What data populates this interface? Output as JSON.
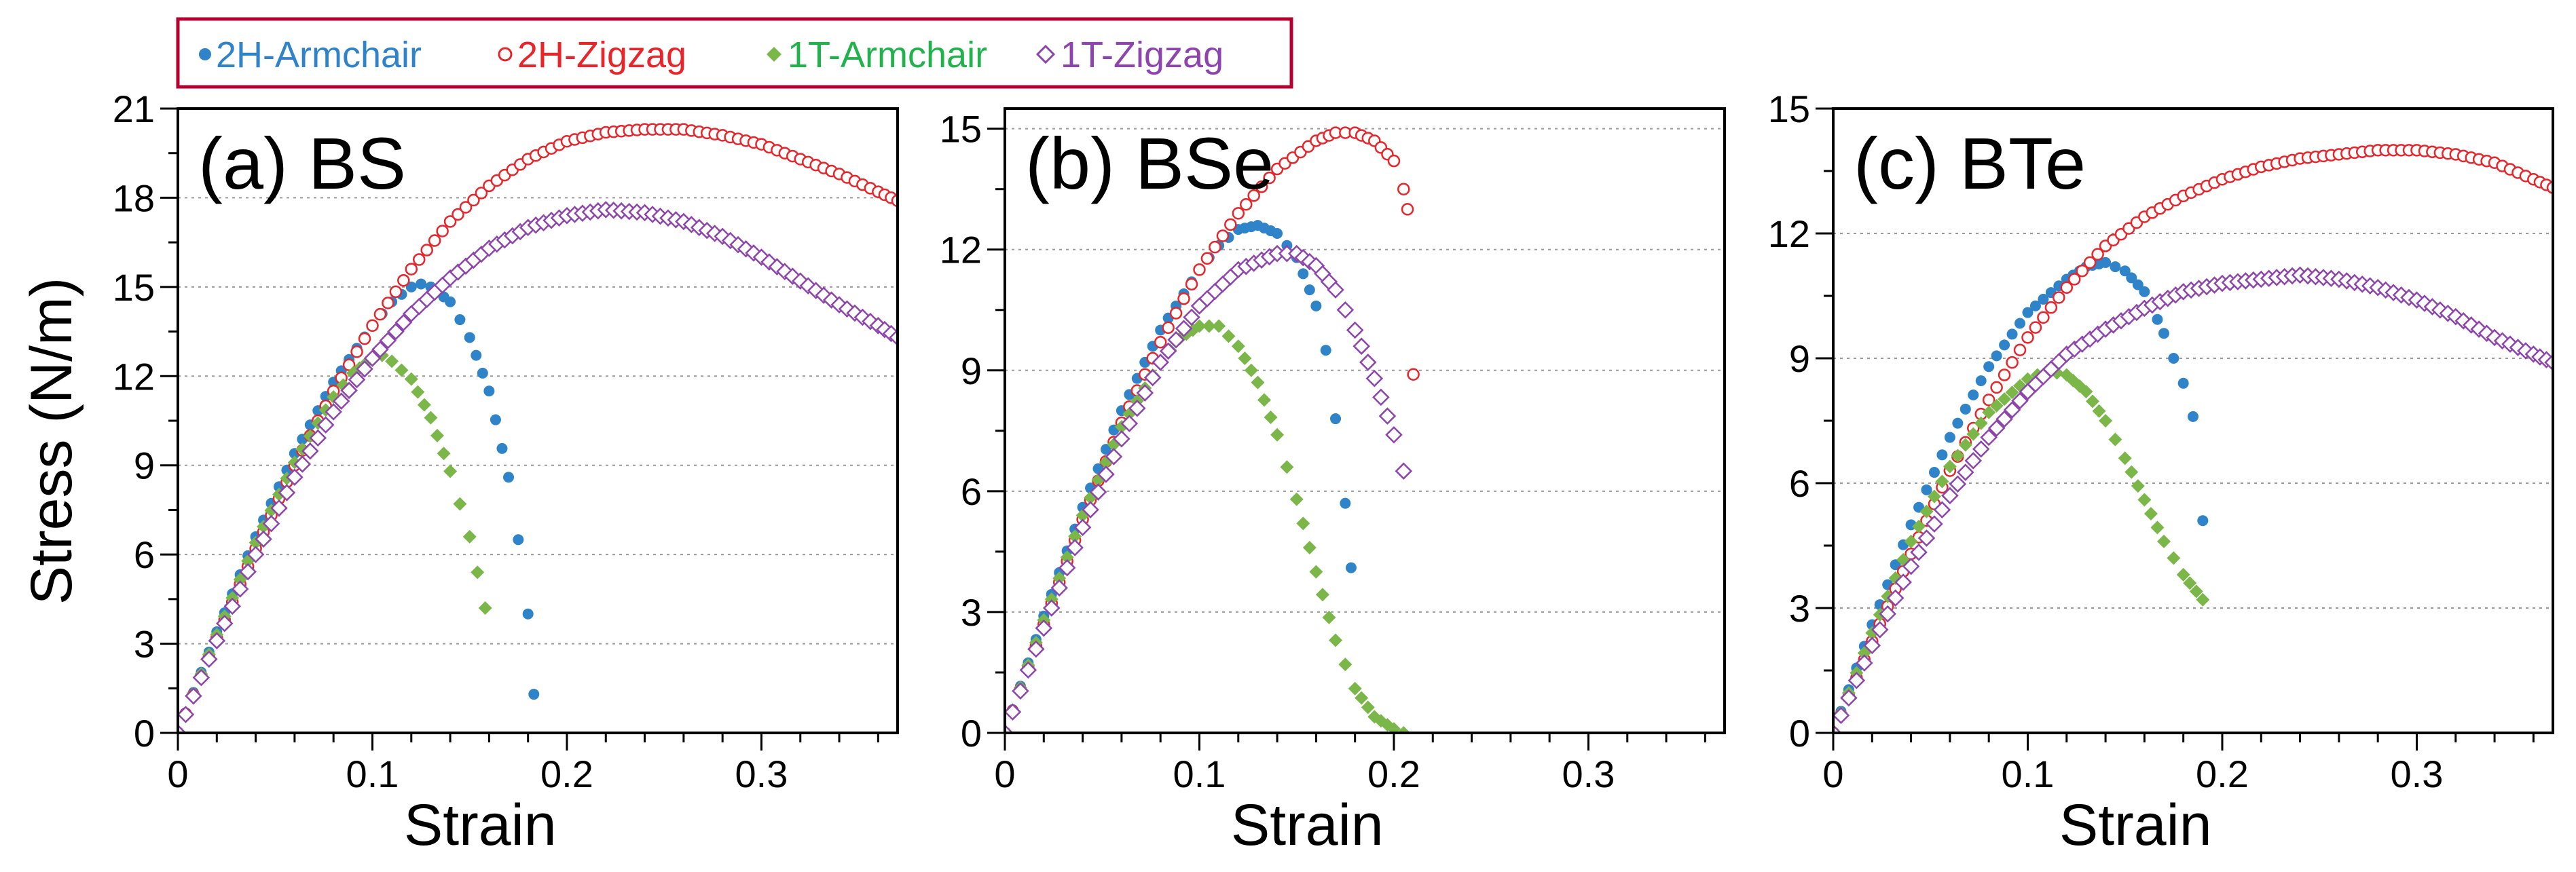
{
  "legend": [
    {
      "label": "2H-Armchair",
      "color": "#2f83c8",
      "marker": "filled-circle"
    },
    {
      "label": "2H-Zigzag",
      "color": "#e8252b",
      "marker": "open-circle"
    },
    {
      "label": "1T-Armchair",
      "color": "#7ab648",
      "marker": "filled-diamond",
      "text_color": "#22b24c"
    },
    {
      "label": "1T-Zigzag",
      "color": "#8e44ad",
      "marker": "open-diamond"
    }
  ],
  "legend_border_color": "#b5002f",
  "ylabel": "Stress (N/m)",
  "chart_data": [
    {
      "type": "scatter",
      "title": "(a) BS",
      "xlabel": "Strain",
      "ylabel": "Stress (N/m)",
      "xlim": [
        0,
        0.37
      ],
      "ylim": [
        0,
        21
      ],
      "xticks": [
        0,
        0.1,
        0.2,
        0.3
      ],
      "xtick_labels": [
        "0",
        "0.1",
        "0.2",
        "0.3"
      ],
      "yticks": [
        0,
        3,
        6,
        9,
        12,
        15,
        18,
        21
      ],
      "ytick_labels": [
        "0",
        "3",
        "6",
        "9",
        "12",
        "15",
        "18",
        "21"
      ],
      "grid": "horizontal dotted",
      "series": [
        {
          "name": "2H-Armchair",
          "points": [
            [
              0,
              0
            ],
            [
              0.02,
              3.4
            ],
            [
              0.04,
              6.6
            ],
            [
              0.06,
              9.4
            ],
            [
              0.08,
              11.8
            ],
            [
              0.1,
              13.7
            ],
            [
              0.11,
              14.5
            ],
            [
              0.12,
              15.0
            ],
            [
              0.125,
              15.1
            ],
            [
              0.13,
              15.0
            ],
            [
              0.14,
              14.5
            ],
            [
              0.15,
              13.3
            ],
            [
              0.16,
              11.5
            ],
            [
              0.17,
              8.6
            ],
            [
              0.175,
              6.5
            ],
            [
              0.18,
              4.0
            ],
            [
              0.183,
              1.3
            ]
          ]
        },
        {
          "name": "2H-Zigzag",
          "points": [
            [
              0,
              0
            ],
            [
              0.02,
              3.2
            ],
            [
              0.04,
              6.2
            ],
            [
              0.06,
              9.0
            ],
            [
              0.08,
              11.5
            ],
            [
              0.1,
              13.7
            ],
            [
              0.12,
              15.6
            ],
            [
              0.14,
              17.2
            ],
            [
              0.16,
              18.4
            ],
            [
              0.18,
              19.3
            ],
            [
              0.2,
              19.9
            ],
            [
              0.22,
              20.2
            ],
            [
              0.24,
              20.3
            ],
            [
              0.26,
              20.3
            ],
            [
              0.28,
              20.1
            ],
            [
              0.3,
              19.8
            ],
            [
              0.32,
              19.3
            ],
            [
              0.34,
              18.8
            ],
            [
              0.36,
              18.2
            ],
            [
              0.37,
              17.9
            ]
          ]
        },
        {
          "name": "1T-Armchair",
          "points": [
            [
              0,
              0
            ],
            [
              0.02,
              3.3
            ],
            [
              0.04,
              6.4
            ],
            [
              0.06,
              9.1
            ],
            [
              0.08,
              11.3
            ],
            [
              0.09,
              12.1
            ],
            [
              0.1,
              12.6
            ],
            [
              0.105,
              12.7
            ],
            [
              0.11,
              12.5
            ],
            [
              0.12,
              11.9
            ],
            [
              0.13,
              10.6
            ],
            [
              0.14,
              8.8
            ],
            [
              0.15,
              6.6
            ],
            [
              0.158,
              4.2
            ]
          ]
        },
        {
          "name": "1T-Zigzag",
          "points": [
            [
              0,
              0
            ],
            [
              0.02,
              3.1
            ],
            [
              0.04,
              6.0
            ],
            [
              0.06,
              8.6
            ],
            [
              0.08,
              10.8
            ],
            [
              0.1,
              12.6
            ],
            [
              0.12,
              14.1
            ],
            [
              0.14,
              15.3
            ],
            [
              0.16,
              16.3
            ],
            [
              0.18,
              17.0
            ],
            [
              0.2,
              17.4
            ],
            [
              0.22,
              17.6
            ],
            [
              0.24,
              17.5
            ],
            [
              0.26,
              17.2
            ],
            [
              0.28,
              16.7
            ],
            [
              0.3,
              16.0
            ],
            [
              0.32,
              15.2
            ],
            [
              0.34,
              14.4
            ],
            [
              0.36,
              13.7
            ],
            [
              0.37,
              13.3
            ]
          ]
        }
      ]
    },
    {
      "type": "scatter",
      "title": "(b) BSe",
      "xlabel": "Strain",
      "ylabel": "",
      "xlim": [
        0,
        0.37
      ],
      "ylim": [
        0,
        15.5
      ],
      "xticks": [
        0,
        0.1,
        0.2,
        0.3
      ],
      "xtick_labels": [
        "0",
        "0.1",
        "0.2",
        "0.3"
      ],
      "yticks": [
        0,
        3,
        6,
        9,
        12,
        15
      ],
      "ytick_labels": [
        "0",
        "3",
        "6",
        "9",
        "12",
        "15"
      ],
      "grid": "horizontal dotted",
      "series": [
        {
          "name": "2H-Armchair",
          "points": [
            [
              0,
              0
            ],
            [
              0.02,
              2.9
            ],
            [
              0.04,
              5.6
            ],
            [
              0.06,
              8.0
            ],
            [
              0.08,
              10.0
            ],
            [
              0.1,
              11.5
            ],
            [
              0.11,
              12.1
            ],
            [
              0.12,
              12.5
            ],
            [
              0.13,
              12.6
            ],
            [
              0.14,
              12.4
            ],
            [
              0.15,
              11.8
            ],
            [
              0.16,
              10.6
            ],
            [
              0.165,
              9.5
            ],
            [
              0.17,
              7.8
            ],
            [
              0.175,
              5.7
            ],
            [
              0.178,
              4.1
            ]
          ]
        },
        {
          "name": "2H-Zigzag",
          "points": [
            [
              0,
              0
            ],
            [
              0.02,
              2.7
            ],
            [
              0.04,
              5.3
            ],
            [
              0.06,
              7.7
            ],
            [
              0.08,
              9.7
            ],
            [
              0.1,
              11.5
            ],
            [
              0.12,
              12.9
            ],
            [
              0.14,
              14.0
            ],
            [
              0.16,
              14.7
            ],
            [
              0.17,
              14.9
            ],
            [
              0.18,
              14.9
            ],
            [
              0.19,
              14.7
            ],
            [
              0.2,
              14.2
            ],
            [
              0.205,
              13.5
            ],
            [
              0.207,
              13.0
            ],
            [
              0.21,
              8.9
            ]
          ]
        },
        {
          "name": "1T-Armchair",
          "points": [
            [
              0,
              0
            ],
            [
              0.02,
              2.8
            ],
            [
              0.04,
              5.4
            ],
            [
              0.06,
              7.6
            ],
            [
              0.08,
              9.2
            ],
            [
              0.09,
              9.8
            ],
            [
              0.1,
              10.1
            ],
            [
              0.11,
              10.1
            ],
            [
              0.12,
              9.6
            ],
            [
              0.13,
              8.7
            ],
            [
              0.14,
              7.4
            ],
            [
              0.15,
              5.8
            ],
            [
              0.16,
              4.0
            ],
            [
              0.17,
              2.3
            ],
            [
              0.18,
              1.1
            ],
            [
              0.19,
              0.4
            ],
            [
              0.2,
              0.1
            ],
            [
              0.205,
              0.0
            ]
          ]
        },
        {
          "name": "1T-Zigzag",
          "points": [
            [
              0,
              0
            ],
            [
              0.02,
              2.6
            ],
            [
              0.04,
              5.1
            ],
            [
              0.06,
              7.3
            ],
            [
              0.08,
              9.2
            ],
            [
              0.1,
              10.6
            ],
            [
              0.12,
              11.5
            ],
            [
              0.14,
              11.9
            ],
            [
              0.15,
              11.9
            ],
            [
              0.16,
              11.6
            ],
            [
              0.17,
              11.0
            ],
            [
              0.18,
              10.0
            ],
            [
              0.19,
              8.8
            ],
            [
              0.2,
              7.4
            ],
            [
              0.205,
              6.5
            ]
          ]
        }
      ]
    },
    {
      "type": "scatter",
      "title": "(c) BTe",
      "xlabel": "Strain",
      "ylabel": "",
      "xlim": [
        0,
        0.37
      ],
      "ylim": [
        0,
        15
      ],
      "xticks": [
        0,
        0.1,
        0.2,
        0.3
      ],
      "xtick_labels": [
        "0",
        "0.1",
        "0.2",
        "0.3"
      ],
      "yticks": [
        0,
        3,
        6,
        9,
        12,
        15
      ],
      "ytick_labels": [
        "0",
        "3",
        "6",
        "9",
        "12",
        "15"
      ],
      "grid": "horizontal dotted",
      "series": [
        {
          "name": "2H-Armchair",
          "points": [
            [
              0,
              0
            ],
            [
              0.02,
              2.6
            ],
            [
              0.04,
              5.0
            ],
            [
              0.06,
              7.1
            ],
            [
              0.08,
              8.8
            ],
            [
              0.1,
              10.1
            ],
            [
              0.12,
              10.9
            ],
            [
              0.13,
              11.2
            ],
            [
              0.14,
              11.3
            ],
            [
              0.15,
              11.1
            ],
            [
              0.16,
              10.6
            ],
            [
              0.17,
              9.6
            ],
            [
              0.18,
              8.4
            ],
            [
              0.185,
              7.6
            ],
            [
              0.19,
              5.1
            ]
          ]
        },
        {
          "name": "2H-Zigzag",
          "points": [
            [
              0,
              0
            ],
            [
              0.02,
              2.2
            ],
            [
              0.04,
              4.3
            ],
            [
              0.06,
              6.3
            ],
            [
              0.08,
              8.0
            ],
            [
              0.1,
              9.5
            ],
            [
              0.12,
              10.7
            ],
            [
              0.14,
              11.7
            ],
            [
              0.16,
              12.4
            ],
            [
              0.18,
              12.9
            ],
            [
              0.2,
              13.3
            ],
            [
              0.22,
              13.6
            ],
            [
              0.24,
              13.8
            ],
            [
              0.26,
              13.9
            ],
            [
              0.28,
              14.0
            ],
            [
              0.3,
              14.0
            ],
            [
              0.32,
              13.9
            ],
            [
              0.34,
              13.7
            ],
            [
              0.36,
              13.3
            ],
            [
              0.37,
              13.1
            ]
          ]
        },
        {
          "name": "1T-Armchair",
          "points": [
            [
              0,
              0
            ],
            [
              0.02,
              2.4
            ],
            [
              0.04,
              4.6
            ],
            [
              0.06,
              6.4
            ],
            [
              0.08,
              7.7
            ],
            [
              0.1,
              8.5
            ],
            [
              0.11,
              8.7
            ],
            [
              0.12,
              8.6
            ],
            [
              0.13,
              8.2
            ],
            [
              0.14,
              7.5
            ],
            [
              0.15,
              6.6
            ],
            [
              0.16,
              5.6
            ],
            [
              0.17,
              4.6
            ],
            [
              0.18,
              3.8
            ],
            [
              0.19,
              3.2
            ]
          ]
        },
        {
          "name": "1T-Zigzag",
          "points": [
            [
              0,
              0
            ],
            [
              0.02,
              2.1
            ],
            [
              0.04,
              4.0
            ],
            [
              0.06,
              5.7
            ],
            [
              0.08,
              7.1
            ],
            [
              0.1,
              8.2
            ],
            [
              0.12,
              9.1
            ],
            [
              0.14,
              9.7
            ],
            [
              0.16,
              10.2
            ],
            [
              0.18,
              10.6
            ],
            [
              0.2,
              10.8
            ],
            [
              0.22,
              10.9
            ],
            [
              0.24,
              11.0
            ],
            [
              0.26,
              10.9
            ],
            [
              0.28,
              10.7
            ],
            [
              0.3,
              10.4
            ],
            [
              0.32,
              10.0
            ],
            [
              0.34,
              9.5
            ],
            [
              0.36,
              9.1
            ],
            [
              0.37,
              8.9
            ]
          ]
        }
      ]
    }
  ]
}
